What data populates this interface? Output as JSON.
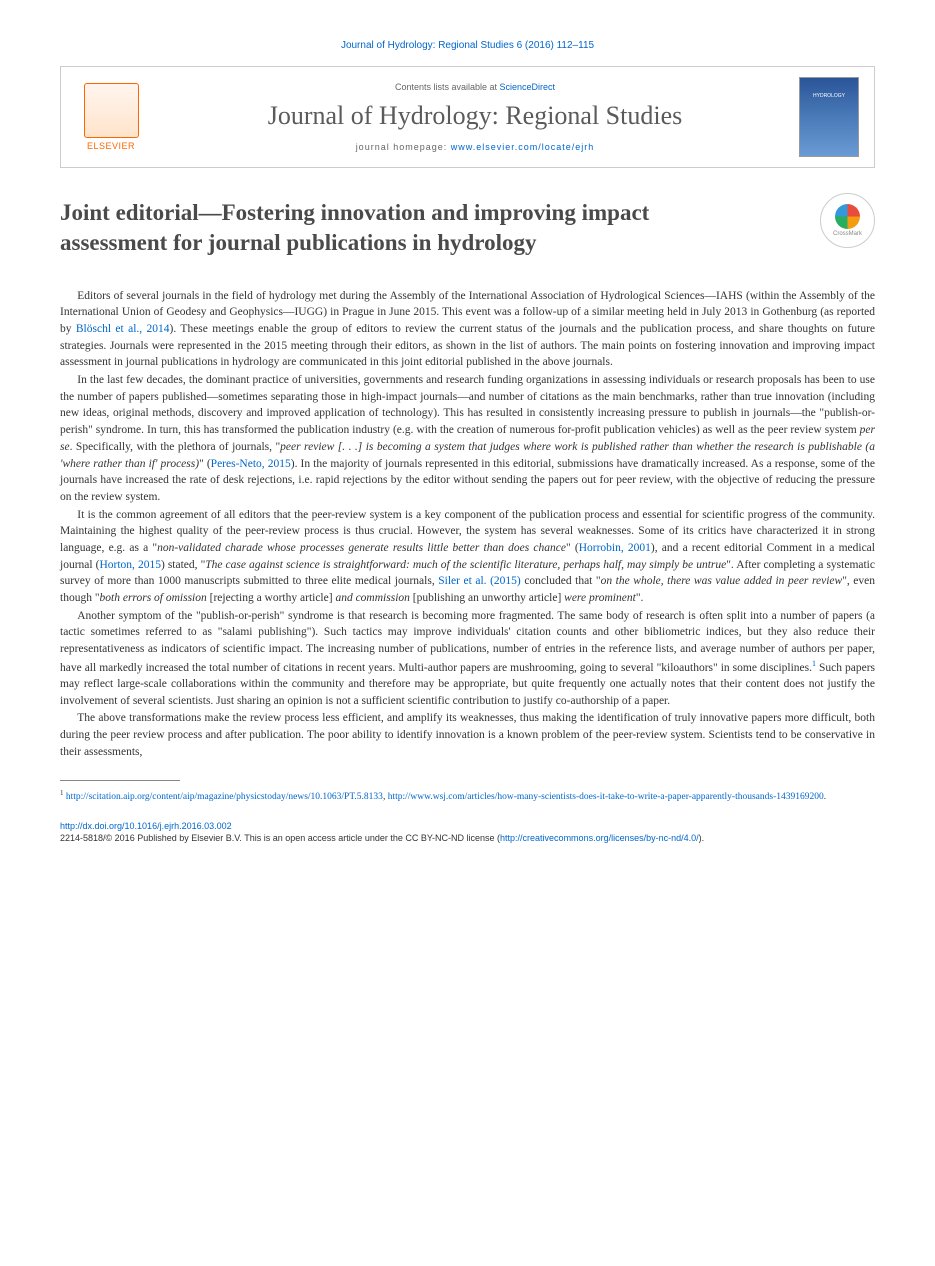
{
  "header": {
    "journal_ref": "Journal of Hydrology: Regional Studies 6 (2016) 112–115",
    "contents_label": "Contents lists available at ",
    "contents_link": "ScienceDirect",
    "journal_name": "Journal of Hydrology: Regional Studies",
    "homepage_label": "journal homepage: ",
    "homepage_url": "www.elsevier.com/locate/ejrh",
    "elsevier": "ELSEVIER",
    "cover_text": "HYDROLOGY",
    "crossmark": "CrossMark"
  },
  "title": "Joint editorial—Fostering innovation and improving impact assessment for journal publications in hydrology",
  "paragraphs": {
    "p1a": "Editors of several journals in the field of hydrology met during the Assembly of the International Association of Hydrological Sciences—IAHS (within the Assembly of the International Union of Geodesy and Geophysics—IUGG) in Prague in June 2015. This event was a follow-up of a similar meeting held in July 2013 in Gothenburg (as reported by ",
    "p1_ref1": "Blöschl et al., 2014",
    "p1b": "). These meetings enable the group of editors to review the current status of the journals and the publication process, and share thoughts on future strategies. Journals were represented in the 2015 meeting through their editors, as shown in the list of authors. The main points on fostering innovation and improving impact assessment in journal publications in hydrology are communicated in this joint editorial published in the above journals.",
    "p2a": "In the last few decades, the dominant practice of universities, governments and research funding organizations in assessing individuals or research proposals has been to use the number of papers published—sometimes separating those in high-impact journals—and number of citations as the main benchmarks, rather than true innovation (including new ideas, original methods, discovery and improved application of technology). This has resulted in consistently increasing pressure to publish in journals—the \"publish-or-perish\" syndrome. In turn, this has transformed the publication industry (e.g. with the creation of numerous for-profit publication vehicles) as well as the peer review system ",
    "p2_em1": "per se",
    "p2b": ". Specifically, with the plethora of journals, \"",
    "p2_em2": "peer review [. . .] is becoming a system that judges where work is published rather than whether the research is publishable (a 'where rather than if' process)",
    "p2c": "\" (",
    "p2_ref1": "Peres-Neto, 2015",
    "p2d": "). In the majority of journals represented in this editorial, submissions have dramatically increased. As a response, some of the journals have increased the rate of desk rejections, i.e. rapid rejections by the editor without sending the papers out for peer review, with the objective of reducing the pressure on the review system.",
    "p3a": "It is the common agreement of all editors that the peer-review system is a key component of the publication process and essential for scientific progress of the community. Maintaining the highest quality of the peer-review process is thus crucial. However, the system has several weaknesses. Some of its critics have characterized it in strong language, e.g. as a \"",
    "p3_em1": "non-validated charade whose processes generate results little better than does chance",
    "p3b": "\" (",
    "p3_ref1": "Horrobin, 2001",
    "p3c": "), and a recent editorial Comment in a medical journal (",
    "p3_ref2": "Horton, 2015",
    "p3d": ") stated, \"",
    "p3_em2": "The case against science is straightforward: much of the scientific literature, perhaps half, may simply be untrue",
    "p3e": "\". After completing a systematic survey of more than 1000 manuscripts submitted to three elite medical journals, ",
    "p3_ref3": "Siler et al. (2015)",
    "p3f": " concluded that \"",
    "p3_em3": "on the whole, there was value added in peer review",
    "p3g": "\", even though \"",
    "p3_em4": "both errors of omission",
    "p3h": " [rejecting a worthy article] ",
    "p3_em5": "and commission",
    "p3i": " [publishing an unworthy article] ",
    "p3_em6": "were prominent",
    "p3j": "\".",
    "p4a": "Another symptom of the \"publish-or-perish\" syndrome is that research is becoming more fragmented. The same body of research is often split into a number of papers (a tactic sometimes referred to as \"salami publishing\"). Such tactics may improve individuals' citation counts and other bibliometric indices, but they also reduce their representativeness as indicators of scientific impact. The increasing number of publications, number of entries in the reference lists, and average number of authors per paper, have all markedly increased the total number of citations in recent years. Multi-author papers are mushrooming, going to several \"kiloauthors\" in some disciplines.",
    "p4_fn": "1",
    "p4b": " Such papers may reflect large-scale collaborations within the community and therefore may be appropriate, but quite frequently one actually notes that their content does not justify the involvement of several scientists. Just sharing an opinion is not a sufficient scientific contribution to justify co-authorship of a paper.",
    "p5": "The above transformations make the review process less efficient, and amplify its weaknesses, thus making the identification of truly innovative papers more difficult, both during the peer review process and after publication. The poor ability to identify innovation is a known problem of the peer-review system. Scientists tend to be conservative in their assessments,"
  },
  "footnote": {
    "marker": "1",
    "url1": "http://scitation.aip.org/content/aip/magazine/physicstoday/news/10.1063/PT.5.8133",
    "sep": ", ",
    "url2": "http://www.wsj.com/articles/how-many-scientists-does-it-take-to-write-a-paper-apparently-thousands-1439169200",
    "end": "."
  },
  "bottom": {
    "doi": "http://dx.doi.org/10.1016/j.ejrh.2016.03.002",
    "copyright": "2214-5818/© 2016 Published by Elsevier B.V. This is an open access article under the CC BY-NC-ND license (",
    "license_url": "http://creativecommons.org/licenses/by-nc-nd/4.0/",
    "end": ")."
  },
  "colors": {
    "link": "#0066cc",
    "text": "#333333",
    "elsevier_orange": "#ff6600",
    "title_gray": "#4a4a4a"
  }
}
